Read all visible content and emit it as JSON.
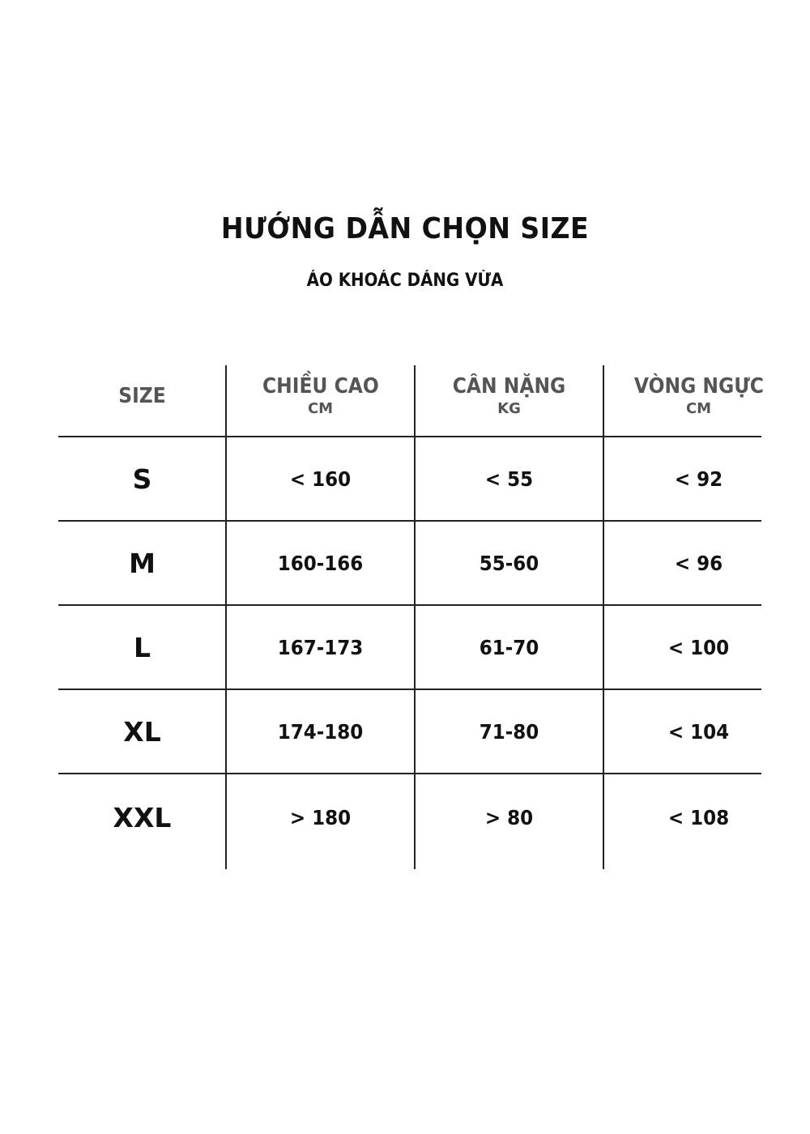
{
  "title": "HƯỚNG DẪN CHỌN SIZE",
  "subtitle": "ÁO KHOÁC DÁNG VỪA",
  "table": {
    "headers": [
      {
        "label": "SIZE",
        "unit": ""
      },
      {
        "label": "CHIỀU CAO",
        "unit": "CM"
      },
      {
        "label": "CÂN NẶNG",
        "unit": "KG"
      },
      {
        "label": "VÒNG NGỰC",
        "unit": "CM"
      }
    ],
    "rows": [
      [
        "S",
        "< 160",
        "< 55",
        "< 92"
      ],
      [
        "M",
        "160-166",
        "55-60",
        "< 96"
      ],
      [
        "L",
        "167-173",
        "61-70",
        "< 100"
      ],
      [
        "XL",
        "174-180",
        "71-80",
        "< 104"
      ],
      [
        "XXL",
        "> 180",
        "> 80",
        "< 108"
      ]
    ]
  },
  "colors": {
    "header_text": "#555555",
    "body_text": "#111111",
    "lines": "#222222"
  }
}
